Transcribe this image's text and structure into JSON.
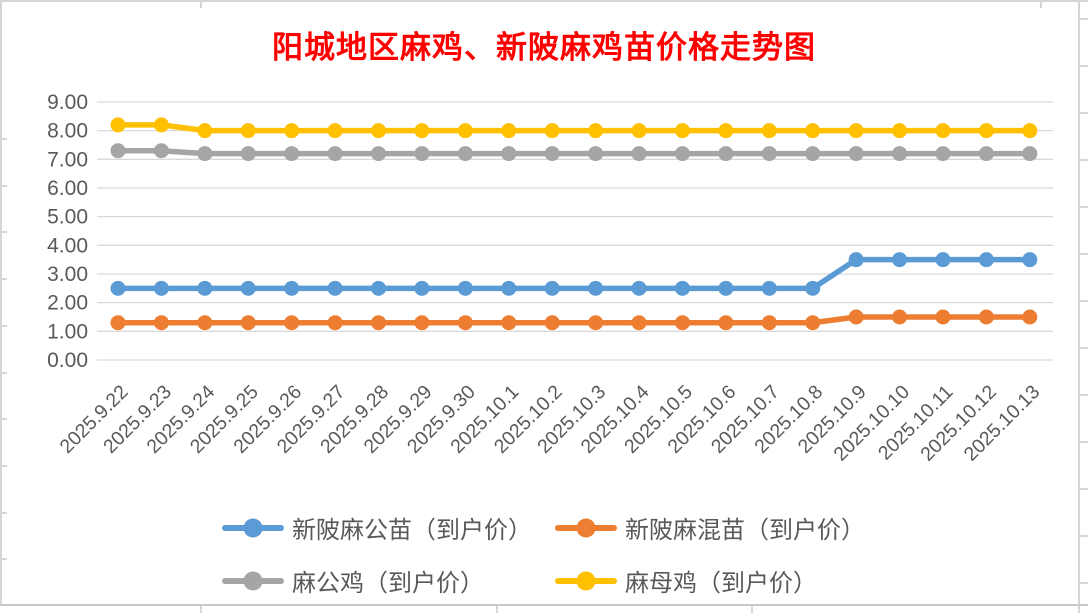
{
  "chart_data": {
    "type": "line",
    "title": "阳城地区麻鸡、新陂麻鸡苗价格走势图",
    "title_color": "#FF0000",
    "x": [
      "2025.9.22",
      "2025.9.23",
      "2025.9.24",
      "2025.9.25",
      "2025.9.26",
      "2025.9.27",
      "2025.9.28",
      "2025.9.29",
      "2025.9.30",
      "2025.10.1",
      "2025.10.2",
      "2025.10.3",
      "2025.10.4",
      "2025.10.5",
      "2025.10.6",
      "2025.10.7",
      "2025.10.8",
      "2025.10.9",
      "2025.10.10",
      "2025.10.11",
      "2025.10.12",
      "2025.10.13"
    ],
    "series": [
      {
        "name": "新陂麻公苗（到户价）",
        "color": "#5B9BD5",
        "values": [
          2.5,
          2.5,
          2.5,
          2.5,
          2.5,
          2.5,
          2.5,
          2.5,
          2.5,
          2.5,
          2.5,
          2.5,
          2.5,
          2.5,
          2.5,
          2.5,
          2.5,
          3.5,
          3.5,
          3.5,
          3.5,
          3.5
        ]
      },
      {
        "name": "新陂麻混苗（到户价）",
        "color": "#ED7D31",
        "values": [
          1.3,
          1.3,
          1.3,
          1.3,
          1.3,
          1.3,
          1.3,
          1.3,
          1.3,
          1.3,
          1.3,
          1.3,
          1.3,
          1.3,
          1.3,
          1.3,
          1.3,
          1.5,
          1.5,
          1.5,
          1.5,
          1.5
        ]
      },
      {
        "name": "麻公鸡（到户价）",
        "color": "#A5A5A5",
        "values": [
          7.3,
          7.3,
          7.2,
          7.2,
          7.2,
          7.2,
          7.2,
          7.2,
          7.2,
          7.2,
          7.2,
          7.2,
          7.2,
          7.2,
          7.2,
          7.2,
          7.2,
          7.2,
          7.2,
          7.2,
          7.2,
          7.2
        ]
      },
      {
        "name": "麻母鸡（到户价）",
        "color": "#FFC000",
        "values": [
          8.2,
          8.2,
          8.0,
          8.0,
          8.0,
          8.0,
          8.0,
          8.0,
          8.0,
          8.0,
          8.0,
          8.0,
          8.0,
          8.0,
          8.0,
          8.0,
          8.0,
          8.0,
          8.0,
          8.0,
          8.0,
          8.0
        ]
      }
    ],
    "ylim": [
      0,
      9
    ],
    "ytick_step": 1,
    "yticks": [
      "9.00",
      "8.00",
      "7.00",
      "6.00",
      "5.00",
      "4.00",
      "3.00",
      "2.00",
      "1.00",
      "0.00"
    ],
    "xlabel": "",
    "ylabel": "",
    "grid": "horizontal",
    "grid_color": "#D9D9D9",
    "axis_label_color": "#595959",
    "legend_position": "bottom",
    "legend_rows": [
      [
        "新陂麻公苗（到户价）",
        "新陂麻混苗（到户价）"
      ],
      [
        "麻公鸡（到户价）",
        "麻母鸡（到户价）"
      ]
    ]
  }
}
